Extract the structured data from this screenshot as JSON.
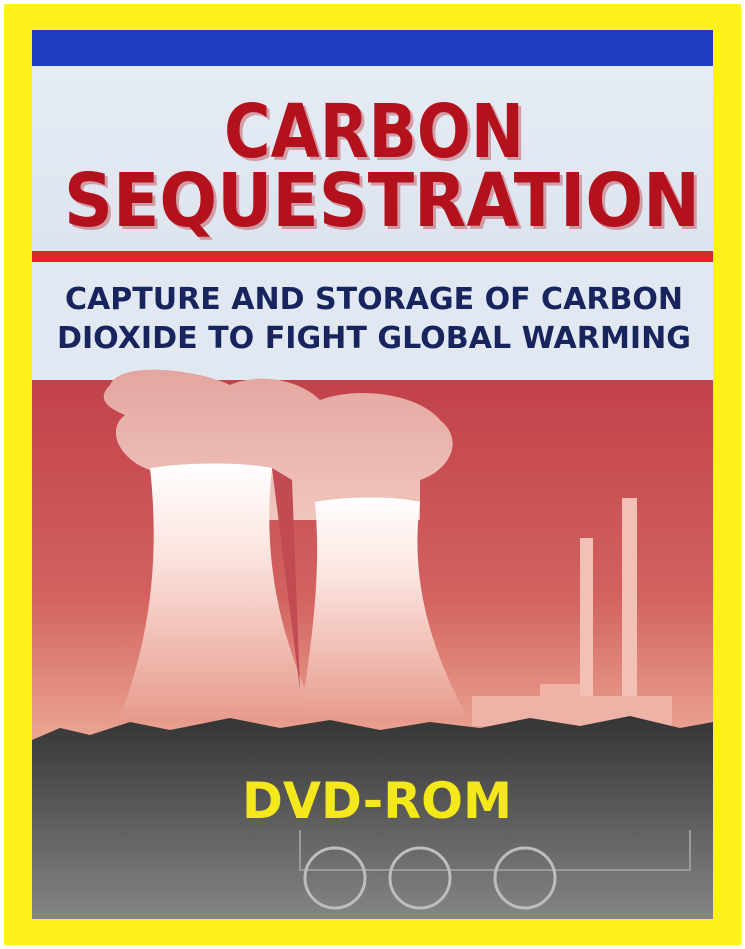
{
  "cover": {
    "title_lines": [
      "CARBON",
      "SEQUESTRATION"
    ],
    "subtitle_lines": [
      "CAPTURE AND STORAGE OF CARBON",
      "DIOXIDE TO FIGHT GLOBAL WARMING"
    ],
    "format": "DVD-ROM"
  }
}
